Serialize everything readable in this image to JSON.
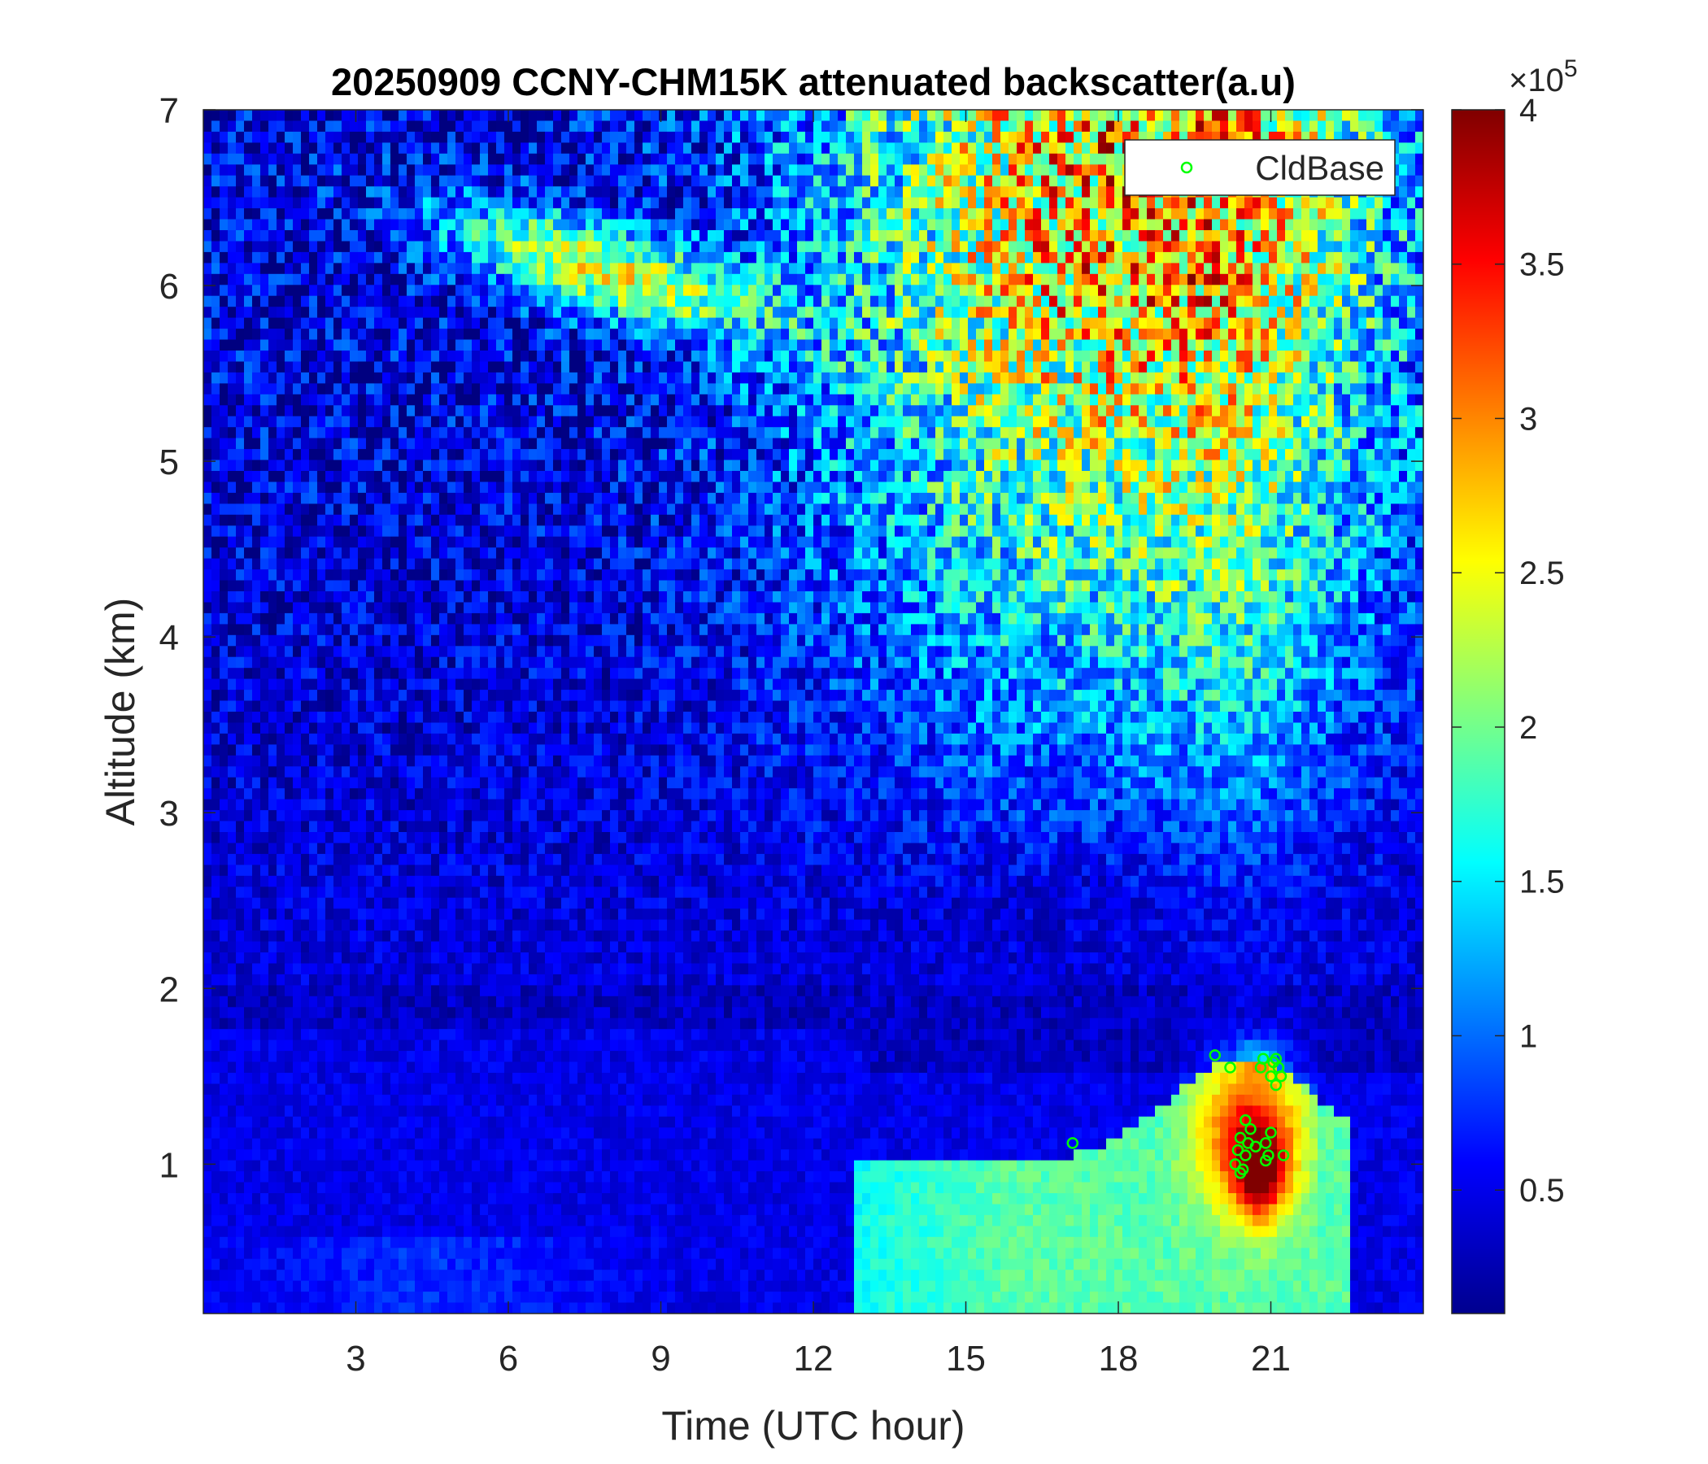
{
  "chart_data": {
    "type": "heatmap",
    "title": "20250909 CCNY-CHM15K attenuated backscatter(a.u)",
    "xlabel": "Time (UTC hour)",
    "ylabel": "Altitude (km)",
    "xlim": [
      0,
      24
    ],
    "ylim": [
      0.15,
      7
    ],
    "xticks": [
      3,
      6,
      9,
      12,
      15,
      18,
      21
    ],
    "yticks": [
      1,
      2,
      3,
      4,
      5,
      6,
      7
    ],
    "grid": false,
    "colormap": "jet",
    "colorbar": {
      "clim": [
        0.1,
        4
      ],
      "ticks": [
        0.5,
        1,
        1.5,
        2,
        2.5,
        3,
        3.5,
        4
      ],
      "tick_labels": [
        "0.5",
        "1",
        "1.5",
        "2",
        "2.5",
        "3",
        "3.5",
        "4"
      ],
      "exponent_label": "×10",
      "exponent": "5"
    },
    "legend": {
      "placement": "top-right",
      "entries": [
        {
          "name": "CldBase",
          "marker": "circle",
          "color": "#00ff00"
        }
      ]
    },
    "features": [
      {
        "kind": "boundary-layer",
        "x_range": [
          0,
          12.5
        ],
        "altitude_range": [
          0.15,
          1.8
        ],
        "value_approx": 0.6
      },
      {
        "kind": "aerosol-plume",
        "x_range": [
          6.5,
          10.5
        ],
        "altitude_range": [
          5.9,
          6.4
        ],
        "value_approx": 2.4
      },
      {
        "kind": "noisy-high-signal",
        "x_range": [
          11.5,
          22
        ],
        "altitude_range": [
          3.5,
          7
        ],
        "value_approx": 3.5
      },
      {
        "kind": "convective-boundary-layer",
        "x_range": [
          13,
          22.5
        ],
        "altitude_range": [
          0.15,
          1.7
        ],
        "value_approx": 1.6
      },
      {
        "kind": "cloud-core",
        "x_range": [
          20,
          21.5
        ],
        "altitude_range": [
          0.7,
          1.6
        ],
        "value_approx": 4.0
      }
    ],
    "series": [
      {
        "name": "CldBase",
        "type": "scatter",
        "x": [
          17.1,
          19.9,
          20.2,
          20.3,
          20.35,
          20.4,
          20.45,
          20.5,
          20.55,
          20.6,
          20.7,
          20.8,
          20.85,
          20.9,
          20.95,
          21.0,
          21.05,
          21.1,
          21.15,
          21.2,
          21.25,
          20.4,
          20.5,
          20.9,
          21.0,
          21.1
        ],
        "y": [
          1.12,
          1.62,
          1.55,
          1.0,
          1.08,
          1.15,
          0.97,
          1.05,
          1.12,
          1.2,
          1.1,
          1.55,
          1.6,
          1.12,
          1.05,
          1.5,
          1.58,
          1.45,
          1.55,
          1.5,
          1.05,
          0.95,
          1.25,
          1.02,
          1.18,
          1.6
        ]
      }
    ]
  }
}
